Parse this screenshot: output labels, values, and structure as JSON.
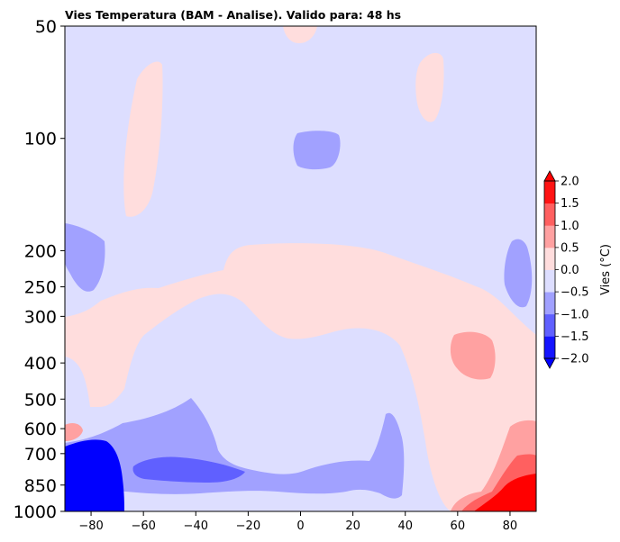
{
  "chart_data": {
    "type": "heatmap",
    "title": "Vies Temperatura (BAM - Analise). Valido para: 48 hs",
    "xlabel": "",
    "ylabel": "",
    "x_ticks": [
      -80,
      -60,
      -40,
      -20,
      0,
      20,
      40,
      60,
      80
    ],
    "x_tick_labels": [
      "−80",
      "−60",
      "−40",
      "−20",
      "0",
      "20",
      "40",
      "60",
      "80"
    ],
    "xlim": [
      -90,
      90
    ],
    "y_scale": "log",
    "y_inverted": true,
    "ylim": [
      1000,
      50
    ],
    "y_ticks": [
      50,
      100,
      200,
      250,
      300,
      400,
      500,
      600,
      700,
      850,
      1000
    ],
    "y_tick_labels": [
      "50",
      "100",
      "200",
      "250",
      "300",
      "400",
      "500",
      "600",
      "700",
      "850",
      "1000"
    ],
    "colorbar": {
      "label": "Vies (°C)",
      "levels": [
        -2.0,
        -1.5,
        -1.0,
        -0.5,
        0.0,
        0.5,
        1.0,
        1.5,
        2.0
      ],
      "tick_labels": [
        "−2.0",
        "−1.5",
        "−1.0",
        "−0.5",
        "0.0",
        "0.5",
        "1.0",
        "1.5",
        "2.0"
      ],
      "colors": [
        "#1414ff",
        "#6060ff",
        "#a1a1ff",
        "#dddeff",
        "#ffdddd",
        "#ffa1a1",
        "#ff6060",
        "#ff1414"
      ],
      "under_color": "#0000ff",
      "over_color": "#ff0000",
      "extend": "both"
    },
    "regions": [
      {
        "name": "background",
        "bias_range": [
          -0.5,
          0.0
        ],
        "lat_range": [
          -90,
          90
        ],
        "p_range": [
          50,
          1000
        ]
      },
      {
        "name": "upper-warm-column",
        "bias_range": [
          0.0,
          0.5
        ],
        "lat_range": [
          -63,
          -53
        ],
        "p_range": [
          75,
          180
        ]
      },
      {
        "name": "upper-warm-column-east",
        "bias_range": [
          0.0,
          0.5
        ],
        "lat_range": [
          45,
          55
        ],
        "p_range": [
          62,
          95
        ]
      },
      {
        "name": "top-warm-blob",
        "bias_range": [
          0.0,
          0.5
        ],
        "lat_range": [
          -6,
          7
        ],
        "p_range": [
          50,
          54
        ]
      },
      {
        "name": "upper-cool-blob",
        "bias_range": [
          -1.0,
          -0.5
        ],
        "lat_range": [
          -3,
          15
        ],
        "p_range": [
          100,
          125
        ]
      },
      {
        "name": "cool-blob-west",
        "bias_range": [
          -1.0,
          -0.5
        ],
        "lat_range": [
          -90,
          -75
        ],
        "p_range": [
          185,
          260
        ]
      },
      {
        "name": "cool-blob-east",
        "bias_range": [
          -1.0,
          -0.5
        ],
        "lat_range": [
          78,
          87
        ],
        "p_range": [
          190,
          300
        ]
      },
      {
        "name": "mid-warm-band",
        "bias_range": [
          0.0,
          0.5
        ],
        "lat_range": [
          -90,
          90
        ],
        "p_range": [
          200,
          950
        ]
      },
      {
        "name": "mid-warm-patch",
        "bias_range": [
          0.5,
          1.0
        ],
        "lat_range": [
          56,
          75
        ],
        "p_range": [
          350,
          420
        ]
      },
      {
        "name": "lower-cool-region",
        "bias_range": [
          -1.0,
          -0.5
        ],
        "lat_range": [
          -80,
          45
        ],
        "p_range": [
          520,
          960
        ]
      },
      {
        "name": "lower-cool-core",
        "bias_range": [
          -1.5,
          -1.0
        ],
        "lat_range": [
          -64,
          -22
        ],
        "p_range": [
          770,
          830
        ]
      },
      {
        "name": "lower-cold-core",
        "bias_range": [
          -2.0,
          -1.5
        ],
        "lat_range": [
          -90,
          -67
        ],
        "p_range": [
          690,
          1000
        ]
      },
      {
        "name": "surface-warm-core",
        "bias_range": [
          1.5,
          2.0
        ],
        "lat_range": [
          60,
          90
        ],
        "p_range": [
          600,
          1000
        ]
      }
    ]
  }
}
